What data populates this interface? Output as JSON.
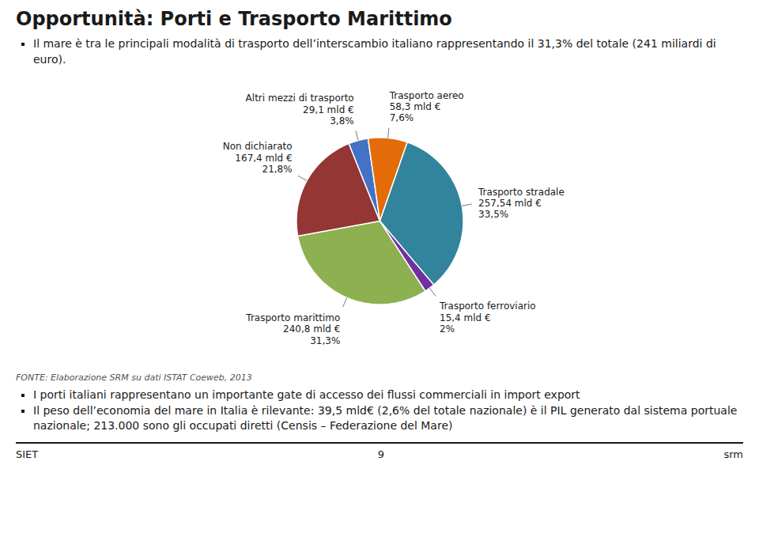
{
  "chart_data": {
    "type": "pie",
    "title": "Opportunità: Porti e Trasporto Marittimo",
    "categories": [
      "Trasporto marittimo",
      "Non dichiarato",
      "Altri mezzi di trasporto",
      "Trasporto aereo",
      "Trasporto stradale",
      "Trasporto ferroviario"
    ],
    "values": [
      31.3,
      21.8,
      3.8,
      7.6,
      33.5,
      2.0
    ],
    "value_labels": [
      "31,3%",
      "21,8%",
      "3,8%",
      "7,6%",
      "33,5%",
      "2%"
    ],
    "amounts": [
      240.8,
      167.4,
      29.1,
      58.3,
      257.54,
      15.4
    ],
    "amount_labels": [
      "240,8 mld €",
      "167,4 mld €",
      "29,1 mld €",
      "58,3 mld €",
      "257,54 mld €",
      "15,4 mld €"
    ],
    "colors": [
      "#8db050",
      "#943634",
      "#4472c4",
      "#e36c09",
      "#31849b",
      "#7030a0"
    ],
    "data_labels": true,
    "annotations": [
      "Il mare è tra le principali modalità di trasporto dell’interscambio italiano rappresentando il 31,3% del totale (241 miliardi di euro).",
      "FONTE: Elaborazione SRM su dati ISTAT Coeweb, 2013",
      "I porti italiani rappresentano un importante gate di accesso dei flussi commerciali in import export",
      "Il peso dell’economia del mare in Italia è rilevante: 39,5 mld€ (2,6% del totale nazionale) è il PIL generato dal sistema portuale nazionale; 213.000 sono gli occupati diretti (Censis – Federazione del Mare)",
      "SIET",
      "9",
      "srm"
    ]
  }
}
